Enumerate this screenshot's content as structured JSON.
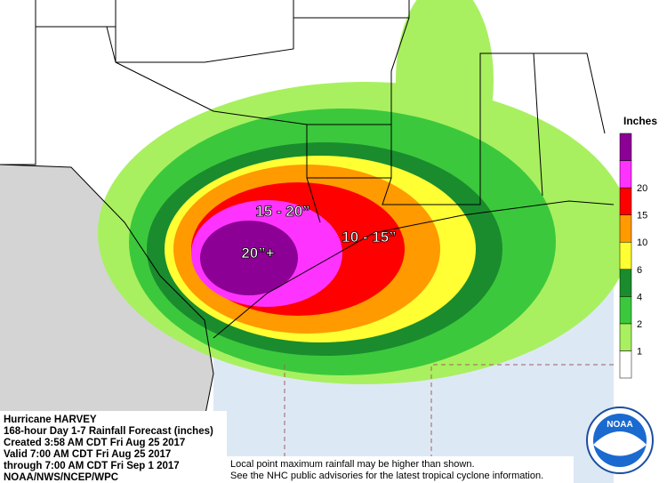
{
  "title_block": {
    "lines": [
      "Hurricane HARVEY",
      "168-hour Day 1-7 Rainfall Forecast (inches)",
      "Created 3:58 AM CDT Fri Aug 25 2017",
      "Valid 7:00 AM CDT Fri Aug 25 2017",
      "through 7:00 AM CDT Fri Sep 1 2017",
      "NOAA/NWS/NCEP/WPC"
    ]
  },
  "map_labels": [
    "15 - 20”",
    "20”+",
    "10 - 15”"
  ],
  "legend": {
    "title": "Inches",
    "colors": [
      "#ffffff",
      "#a8f060",
      "#3cc83c",
      "#1a8c2e",
      "#ffff33",
      "#ff9a00",
      "#ff0000",
      "#ff33ff",
      "#8c0096"
    ],
    "ticks": [
      1,
      2,
      4,
      6,
      10,
      15,
      20
    ]
  },
  "footnote": {
    "lines": [
      "Local point maximum rainfall may be higher than shown.",
      "See the NHC public advisories for the latest tropical cyclone information."
    ]
  },
  "logo": {
    "text": "NOAA"
  }
}
